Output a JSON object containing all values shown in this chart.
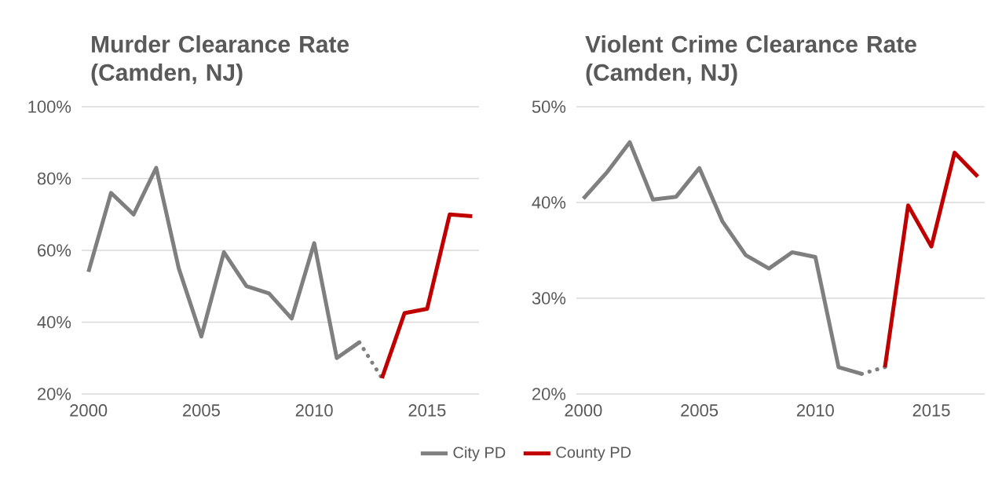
{
  "chart_data": [
    {
      "type": "line",
      "title": "Murder Clearance Rate (Camden, NJ)",
      "xlim": [
        1999.7,
        2017.3
      ],
      "ylim": [
        20,
        100
      ],
      "xticks": [
        2000,
        2005,
        2010,
        2015
      ],
      "yticks": [
        {
          "value": 20,
          "label": "20%"
        },
        {
          "value": 40,
          "label": "40%"
        },
        {
          "value": 60,
          "label": "60%"
        },
        {
          "value": 80,
          "label": "80%"
        },
        {
          "value": 100,
          "label": "100%"
        }
      ],
      "grid": "y",
      "legend": "bottom",
      "series": [
        {
          "name": "City PD",
          "color": "#7f7f7f",
          "line_style": "solid",
          "x": [
            2000,
            2001,
            2002,
            2003,
            2004,
            2005,
            2006,
            2007,
            2008,
            2009,
            2010,
            2011,
            2012
          ],
          "values": [
            54,
            76,
            70,
            83,
            55,
            36,
            59.5,
            50,
            48,
            41,
            62,
            30,
            34.4
          ]
        },
        {
          "color": "#7f7f7f",
          "line_style": "dotted",
          "x": [
            2012,
            2013
          ],
          "values": [
            34.4,
            24.4
          ]
        },
        {
          "name": "County PD",
          "color": "#c00000",
          "line_style": "solid",
          "x": [
            2013,
            2014,
            2015,
            2016,
            2017
          ],
          "values": [
            24.4,
            42.5,
            43.7,
            70,
            69.5
          ]
        }
      ]
    },
    {
      "type": "line",
      "title": "Violent Crime Clearance Rate (Camden, NJ)",
      "xlim": [
        1999.7,
        2017.3
      ],
      "ylim": [
        20,
        50
      ],
      "xticks": [
        2000,
        2005,
        2010,
        2015
      ],
      "yticks": [
        {
          "value": 20,
          "label": "20%"
        },
        {
          "value": 30,
          "label": "30%"
        },
        {
          "value": 40,
          "label": "40%"
        },
        {
          "value": 50,
          "label": "50%"
        }
      ],
      "grid": "y",
      "series": [
        {
          "color": "#7f7f7f",
          "line_style": "solid",
          "x": [
            2000,
            2001,
            2002,
            2003,
            2004,
            2005,
            2006,
            2007,
            2008,
            2009,
            2010,
            2011,
            2012
          ],
          "values": [
            40.4,
            43.1,
            46.3,
            40.3,
            40.6,
            43.6,
            38.0,
            34.5,
            33.1,
            34.8,
            34.3,
            22.8,
            22.1
          ]
        },
        {
          "color": "#7f7f7f",
          "line_style": "dotted",
          "x": [
            2012,
            2013
          ],
          "values": [
            22.1,
            22.8
          ]
        },
        {
          "color": "#c00000",
          "line_style": "solid",
          "x": [
            2013,
            2014,
            2015,
            2016,
            2017
          ],
          "values": [
            22.8,
            39.7,
            35.4,
            45.2,
            42.7
          ]
        }
      ]
    }
  ]
}
